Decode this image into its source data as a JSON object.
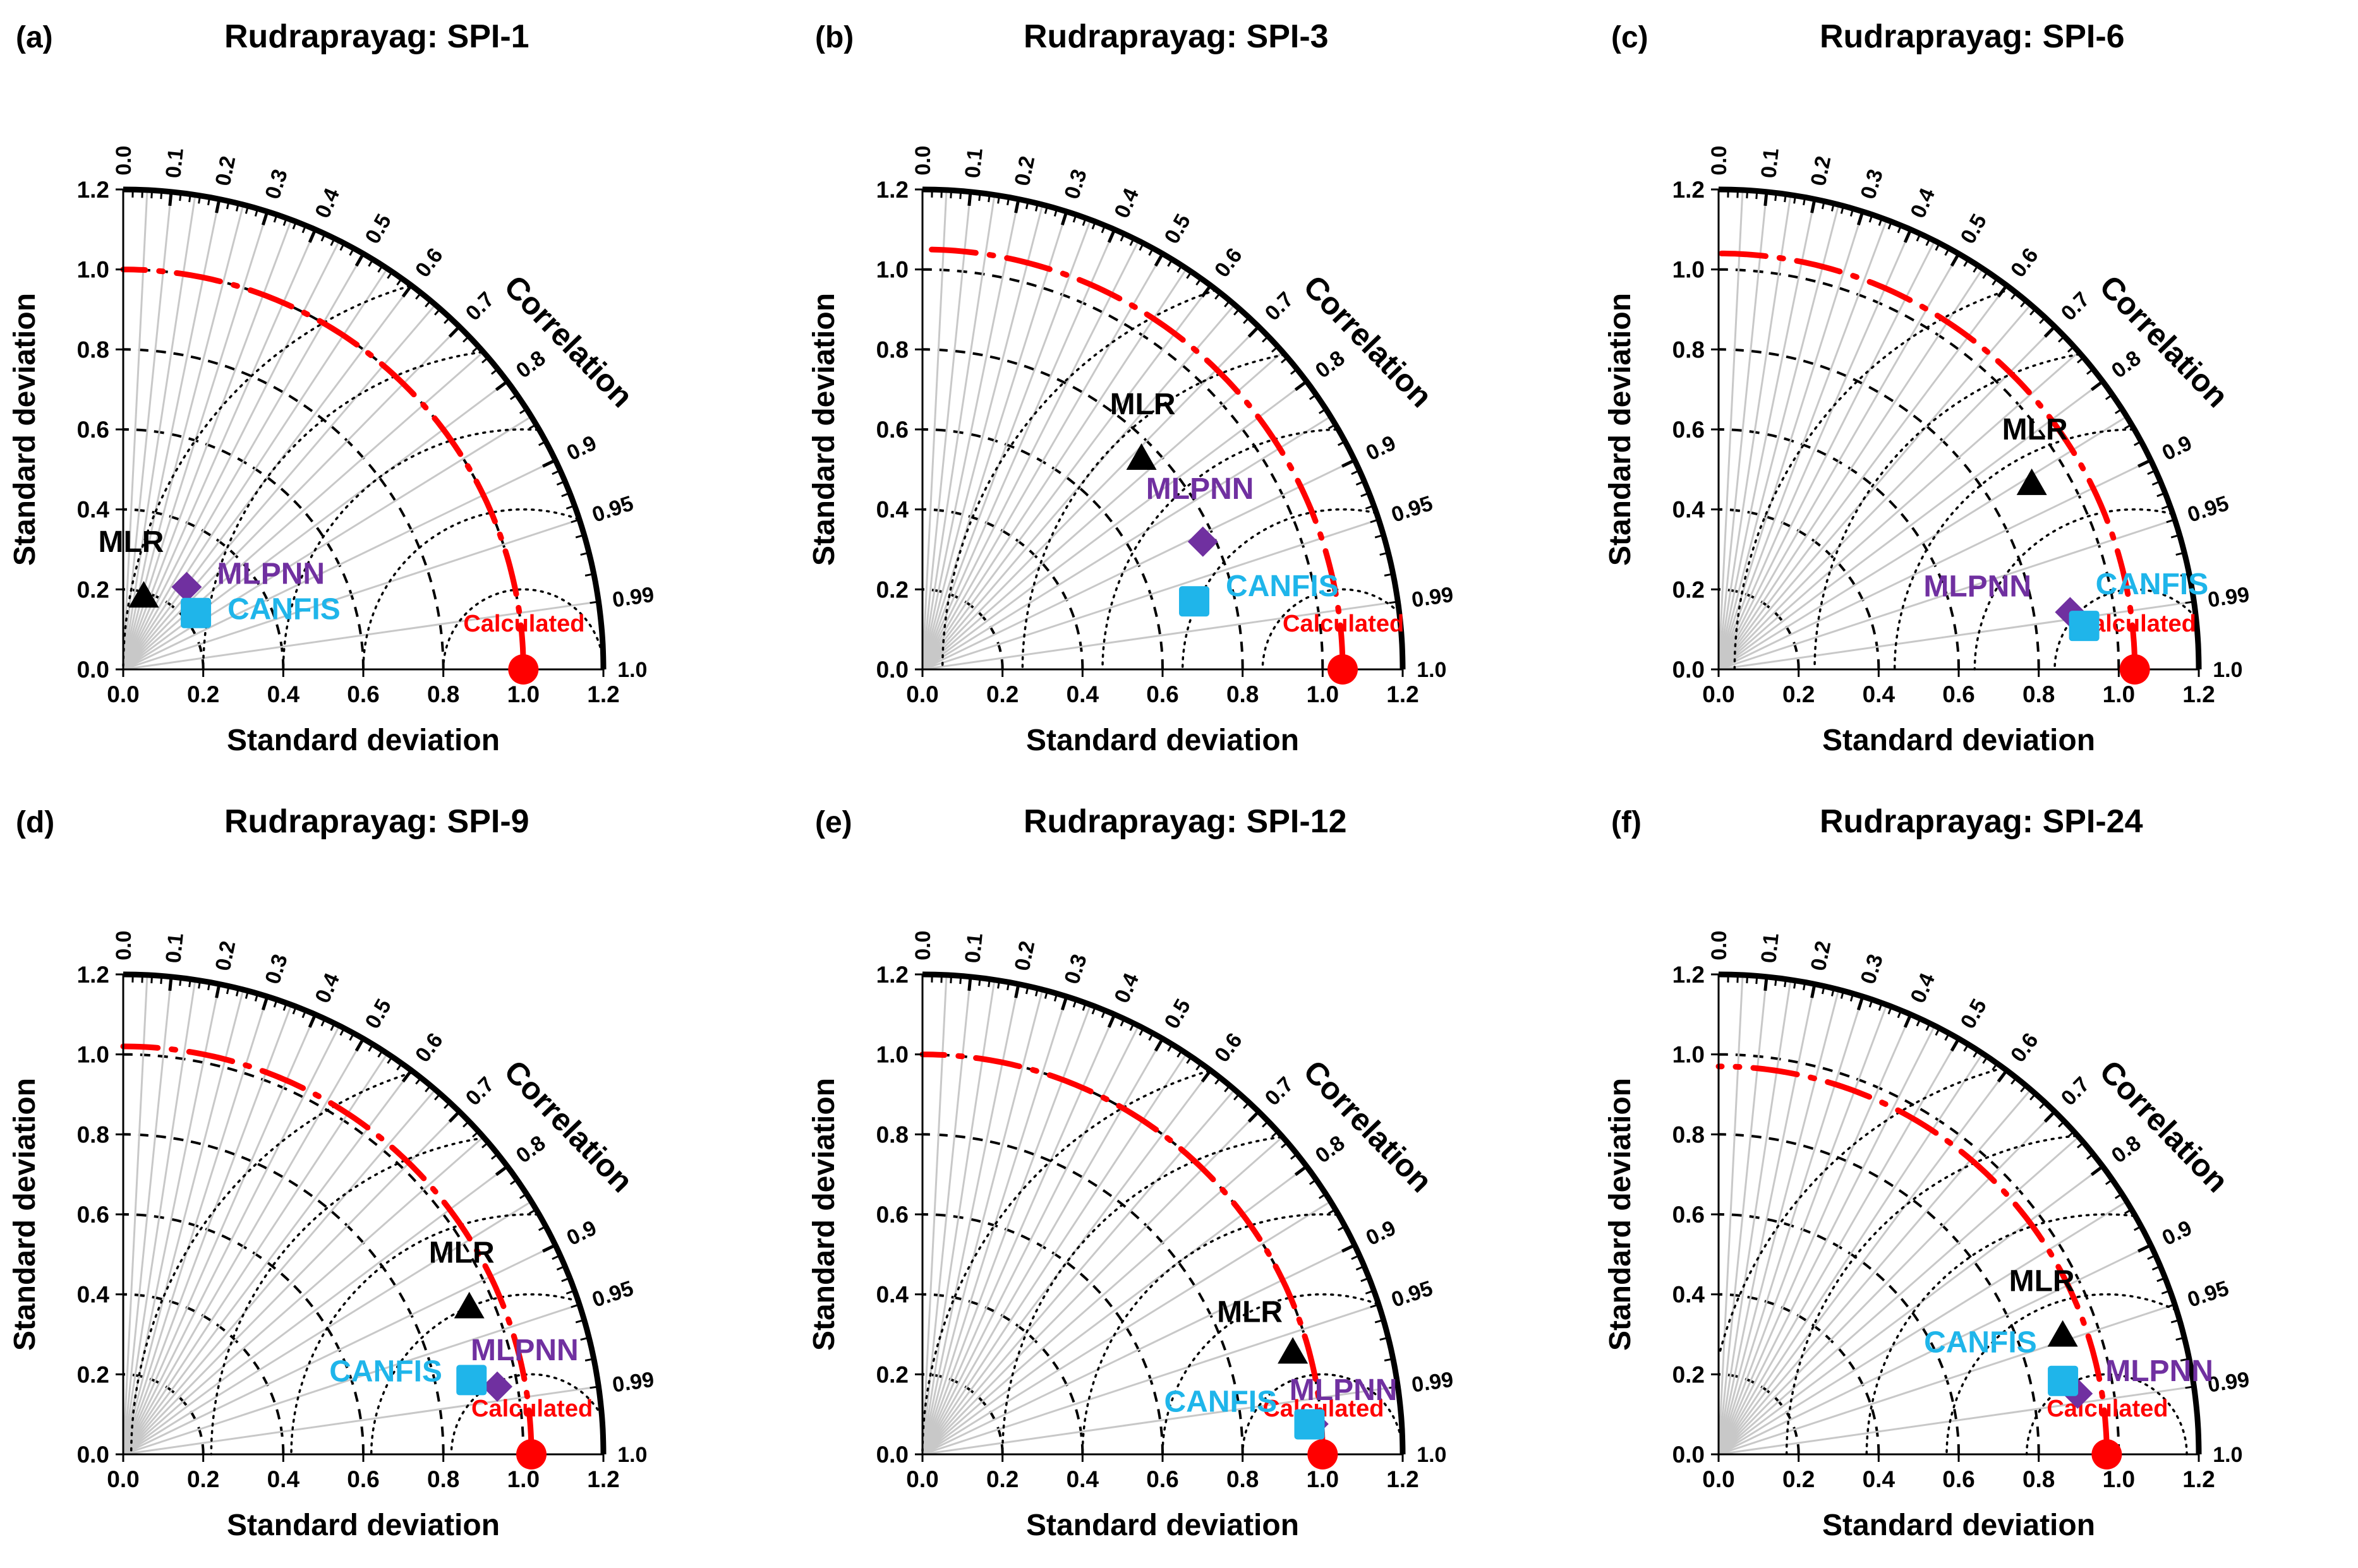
{
  "chart_data": [
    {
      "type": "taylor",
      "panel_label": "(a)",
      "title": "Rudraprayag: SPI-1",
      "xlabel": "Standard deviation",
      "ylabel": "Standard deviation",
      "arc_label": "Correlation",
      "xlim": [
        0,
        1.2
      ],
      "ylim": [
        0,
        1.2
      ],
      "axis_ticks": [
        "0.0",
        "0.2",
        "0.4",
        "0.6",
        "0.8",
        "1.0",
        "1.2"
      ],
      "correlation_ticks": [
        "0.0",
        "0.1",
        "0.2",
        "0.3",
        "0.4",
        "0.5",
        "0.6",
        "0.7",
        "0.8",
        "0.9",
        "0.95",
        "0.99",
        "1.0"
      ],
      "reference": {
        "name": "Calculated",
        "std": 1.0,
        "corr": 1.0,
        "color": "#ff0000"
      },
      "models": [
        {
          "name": "MLR",
          "std": 0.19,
          "corr": 0.27,
          "marker": "triangle",
          "color": "#000000"
        },
        {
          "name": "MLPNN",
          "std": 0.26,
          "corr": 0.61,
          "marker": "diamond",
          "color": "#7030a0"
        },
        {
          "name": "CANFIS",
          "std": 0.23,
          "corr": 0.79,
          "marker": "square",
          "color": "#1fb5ea"
        }
      ]
    },
    {
      "type": "taylor",
      "panel_label": "(b)",
      "title": "Rudraprayag: SPI-3",
      "xlabel": "Standard deviation",
      "ylabel": "Standard deviation",
      "arc_label": "Correlation",
      "xlim": [
        0,
        1.2
      ],
      "ylim": [
        0,
        1.2
      ],
      "axis_ticks": [
        "0.0",
        "0.2",
        "0.4",
        "0.6",
        "0.8",
        "1.0",
        "1.2"
      ],
      "correlation_ticks": [
        "0.0",
        "0.1",
        "0.2",
        "0.3",
        "0.4",
        "0.5",
        "0.6",
        "0.7",
        "0.8",
        "0.9",
        "0.95",
        "0.99",
        "1.0"
      ],
      "reference": {
        "name": "Calculated",
        "std": 1.05,
        "corr": 1.0,
        "color": "#ff0000"
      },
      "models": [
        {
          "name": "MLR",
          "std": 0.76,
          "corr": 0.72,
          "marker": "triangle",
          "color": "#000000"
        },
        {
          "name": "MLPNN",
          "std": 0.77,
          "corr": 0.91,
          "marker": "diamond",
          "color": "#7030a0"
        },
        {
          "name": "CANFIS",
          "std": 0.7,
          "corr": 0.97,
          "marker": "square",
          "color": "#1fb5ea"
        }
      ]
    },
    {
      "type": "taylor",
      "panel_label": "(c)",
      "title": "Rudraprayag: SPI-6",
      "xlabel": "Standard deviation",
      "ylabel": "Standard deviation",
      "arc_label": "Correlation",
      "xlim": [
        0,
        1.2
      ],
      "ylim": [
        0,
        1.2
      ],
      "axis_ticks": [
        "0.0",
        "0.2",
        "0.4",
        "0.6",
        "0.8",
        "1.0",
        "1.2"
      ],
      "correlation_ticks": [
        "0.0",
        "0.1",
        "0.2",
        "0.3",
        "0.4",
        "0.5",
        "0.6",
        "0.7",
        "0.8",
        "0.9",
        "0.95",
        "0.99",
        "1.0"
      ],
      "reference": {
        "name": "Calculated",
        "std": 1.04,
        "corr": 1.0,
        "color": "#ff0000"
      },
      "models": [
        {
          "name": "MLR",
          "std": 0.91,
          "corr": 0.86,
          "marker": "triangle",
          "color": "#000000"
        },
        {
          "name": "MLPNN",
          "std": 0.89,
          "corr": 0.987,
          "marker": "diamond",
          "color": "#7030a0"
        },
        {
          "name": "CANFIS",
          "std": 0.92,
          "corr": 0.993,
          "marker": "square",
          "color": "#1fb5ea"
        }
      ]
    },
    {
      "type": "taylor",
      "panel_label": "(d)",
      "title": "Rudraprayag: SPI-9",
      "xlabel": "Standard deviation",
      "ylabel": "Standard deviation",
      "arc_label": "Correlation",
      "xlim": [
        0,
        1.2
      ],
      "ylim": [
        0,
        1.2
      ],
      "axis_ticks": [
        "0.0",
        "0.2",
        "0.4",
        "0.6",
        "0.8",
        "1.0",
        "1.2"
      ],
      "correlation_ticks": [
        "0.0",
        "0.1",
        "0.2",
        "0.3",
        "0.4",
        "0.5",
        "0.6",
        "0.7",
        "0.8",
        "0.9",
        "0.95",
        "0.99",
        "1.0"
      ],
      "reference": {
        "name": "Calculated",
        "std": 1.02,
        "corr": 1.0,
        "color": "#ff0000"
      },
      "models": [
        {
          "name": "MLR",
          "std": 0.94,
          "corr": 0.92,
          "marker": "triangle",
          "color": "#000000"
        },
        {
          "name": "MLPNN",
          "std": 0.95,
          "corr": 0.984,
          "marker": "diamond",
          "color": "#7030a0"
        },
        {
          "name": "CANFIS",
          "std": 0.89,
          "corr": 0.978,
          "marker": "square",
          "color": "#1fb5ea"
        }
      ]
    },
    {
      "type": "taylor",
      "panel_label": "(e)",
      "title": "Rudraprayag: SPI-12",
      "xlabel": "Standard deviation",
      "ylabel": "Standard deviation",
      "arc_label": "Correlation",
      "xlim": [
        0,
        1.2
      ],
      "ylim": [
        0,
        1.2
      ],
      "axis_ticks": [
        "0.0",
        "0.2",
        "0.4",
        "0.6",
        "0.8",
        "1.0",
        "1.2"
      ],
      "correlation_ticks": [
        "0.0",
        "0.1",
        "0.2",
        "0.3",
        "0.4",
        "0.5",
        "0.6",
        "0.7",
        "0.8",
        "0.9",
        "0.95",
        "0.99",
        "1.0"
      ],
      "reference": {
        "name": "Calculated",
        "std": 1.0,
        "corr": 1.0,
        "color": "#ff0000"
      },
      "models": [
        {
          "name": "MLR",
          "std": 0.96,
          "corr": 0.964,
          "marker": "triangle",
          "color": "#000000"
        },
        {
          "name": "MLPNN",
          "std": 0.98,
          "corr": 0.997,
          "marker": "diamond",
          "color": "#7030a0"
        },
        {
          "name": "CANFIS",
          "std": 0.97,
          "corr": 0.997,
          "marker": "square",
          "color": "#1fb5ea"
        }
      ]
    },
    {
      "type": "taylor",
      "panel_label": "(f)",
      "title": "Rudraprayag: SPI-24",
      "xlabel": "Standard deviation",
      "ylabel": "Standard deviation",
      "arc_label": "Correlation",
      "xlim": [
        0,
        1.2
      ],
      "ylim": [
        0,
        1.2
      ],
      "axis_ticks": [
        "0.0",
        "0.2",
        "0.4",
        "0.6",
        "0.8",
        "1.0",
        "1.2"
      ],
      "correlation_ticks": [
        "0.0",
        "0.1",
        "0.2",
        "0.3",
        "0.4",
        "0.5",
        "0.6",
        "0.7",
        "0.8",
        "0.9",
        "0.95",
        "0.99",
        "1.0"
      ],
      "reference": {
        "name": "Calculated",
        "std": 0.97,
        "corr": 1.0,
        "color": "#ff0000"
      },
      "models": [
        {
          "name": "MLR",
          "std": 0.91,
          "corr": 0.945,
          "marker": "triangle",
          "color": "#000000"
        },
        {
          "name": "MLPNN",
          "std": 0.91,
          "corr": 0.986,
          "marker": "diamond",
          "color": "#7030a0"
        },
        {
          "name": "CANFIS",
          "std": 0.88,
          "corr": 0.978,
          "marker": "square",
          "color": "#1fb5ea"
        }
      ]
    }
  ]
}
